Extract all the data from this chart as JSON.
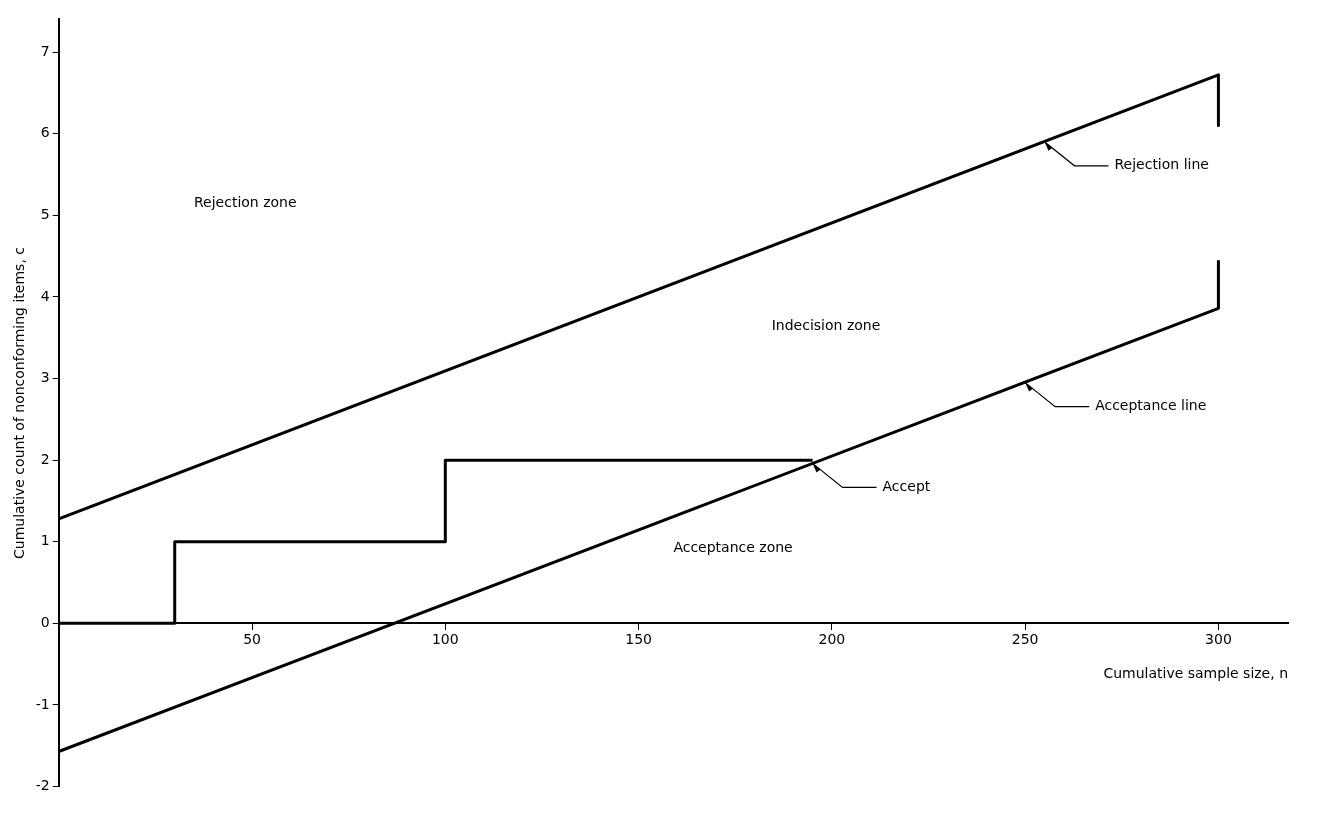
{
  "chart_data": {
    "type": "line",
    "xlabel": "Cumulative sample size, n",
    "ylabel": "Cumulative count of nonconforming items, c",
    "xlim": [
      0,
      318
    ],
    "xticks": [
      50,
      100,
      150,
      200,
      250,
      300
    ],
    "ylim": [
      -2,
      7.4
    ],
    "yticks": [
      -2,
      -1,
      0,
      1,
      2,
      3,
      4,
      5,
      6,
      7
    ],
    "grid": false,
    "legend": false,
    "marker": "none",
    "line_style": "solid",
    "series": [
      {
        "color": "#000000",
        "x": [
          0,
          300,
          300
        ],
        "values": [
          1.28,
          6.72,
          6.1
        ]
      },
      {
        "color": "#000000",
        "x": [
          0,
          300,
          300
        ],
        "values": [
          -1.57,
          3.86,
          4.45
        ]
      },
      {
        "type": "step",
        "color": "#000000",
        "x": [
          0,
          30,
          100,
          195
        ],
        "values": [
          0,
          1,
          2,
          2
        ]
      }
    ],
    "annotations": [
      "Rejection zone",
      "Indecision zone",
      "Acceptance zone",
      {
        "text": "Rejection line",
        "x": 255,
        "y": 5.9
      },
      {
        "text": "Acceptance line",
        "x": 250,
        "y": 2.95
      },
      {
        "text": "Accept",
        "x": 195,
        "y": 1.96
      }
    ]
  }
}
